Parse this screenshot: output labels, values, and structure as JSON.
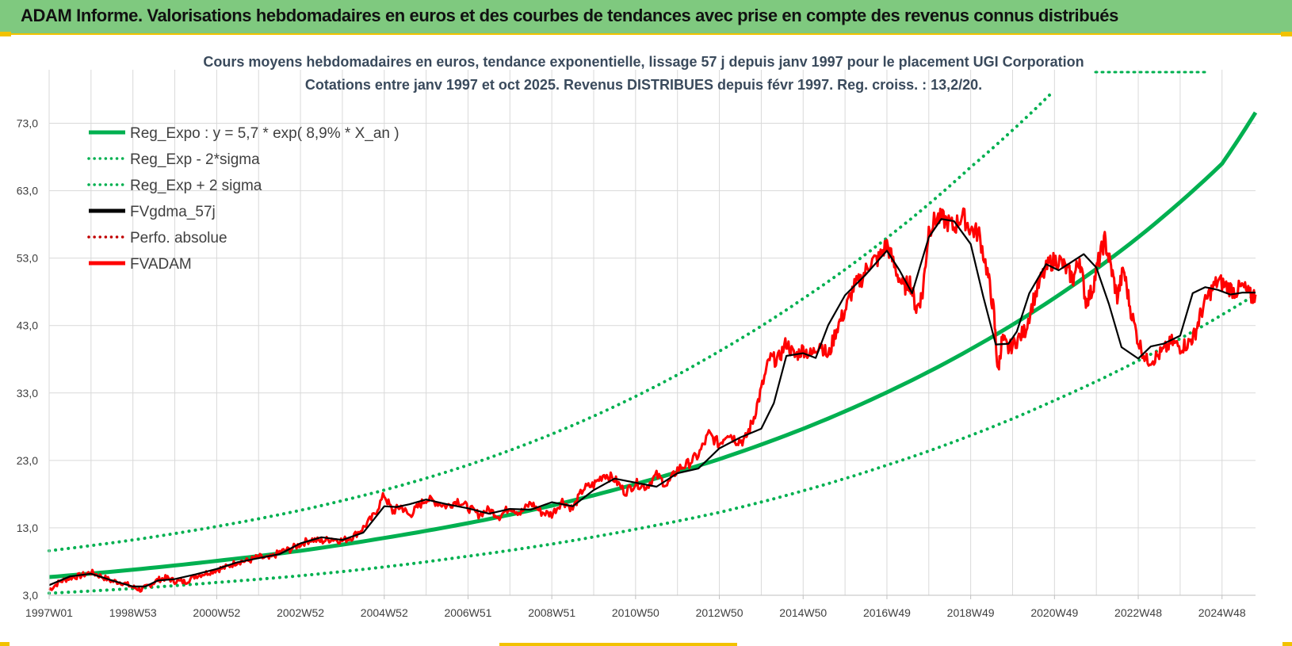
{
  "banner": {
    "title": "ADAM Informe. Valorisations hebdomadaires en euros et des courbes de tendances avec prise en compte des revenus connus distribués"
  },
  "colors": {
    "banner_bg": "#7fc97f",
    "accent_yellow": "#f2c200",
    "reg_green": "#00b050",
    "fvadam_red": "#ff0000",
    "fvgdma_black": "#000000",
    "perfo_red": "#c00000"
  },
  "chart_data": {
    "type": "line",
    "title": "Cours moyens hebdomadaires en euros, tendance exponentielle, lissage 57 j depuis janv 1997 pour le placement UGI Corporation",
    "subtitle": "Cotations entre janv 1997 et oct 2025. Revenus DISTRIBUES depuis févr 1997. Reg. croiss. : 13,2/20.",
    "xlabel": "",
    "ylabel": "",
    "xlim": [
      1997.0,
      2025.8
    ],
    "ylim": [
      3.0,
      80.0
    ],
    "y_ticks": [
      "3,0",
      "13,0",
      "23,0",
      "33,0",
      "43,0",
      "53,0",
      "63,0",
      "73,0"
    ],
    "y_tick_values": [
      3,
      13,
      23,
      33,
      43,
      53,
      63,
      73
    ],
    "x_ticks": [
      "1997W01",
      "1998W53",
      "2000W52",
      "2002W52",
      "2004W52",
      "2006W51",
      "2008W51",
      "2010W50",
      "2012W50",
      "2014W50",
      "2016W49",
      "2018W49",
      "2020W49",
      "2022W48",
      "2024W48"
    ],
    "x_tick_values": [
      1997.0,
      1999.0,
      2001.0,
      2003.0,
      2005.0,
      2007.0,
      2009.0,
      2011.0,
      2013.0,
      2015.0,
      2017.0,
      2019.0,
      2021.0,
      2023.0,
      2025.0
    ],
    "grid": true,
    "legend": "top-left",
    "series": [
      {
        "name": "Reg_Expo : y = 5,7 * exp( 8,9% *  X_an )",
        "style": "solid",
        "x": [
          1997.0,
          1999.0,
          2001.0,
          2003.0,
          2005.0,
          2007.0,
          2009.0,
          2011.0,
          2013.0,
          2015.0,
          2017.0,
          2019.0,
          2021.0,
          2023.0,
          2025.0,
          2025.8
        ],
        "values": [
          5.7,
          6.8,
          8.1,
          9.6,
          11.5,
          13.7,
          16.3,
          19.5,
          23.2,
          27.7,
          33.1,
          39.5,
          47.1,
          56.1,
          67.0,
          74.6
        ]
      },
      {
        "name": "Reg_Exp - 2*sigma",
        "style": "dotted",
        "x": [
          1997.0,
          1999.0,
          2001.0,
          2003.0,
          2005.0,
          2007.0,
          2009.0,
          2011.0,
          2013.0,
          2015.0,
          2017.0,
          2019.0,
          2021.0,
          2023.0,
          2025.0,
          2025.8
        ],
        "values": [
          3.3,
          4.0,
          4.9,
          5.9,
          7.2,
          8.8,
          10.6,
          12.8,
          15.3,
          18.5,
          22.3,
          26.7,
          31.9,
          37.8,
          44.6,
          47.6
        ]
      },
      {
        "name": "Reg_Exp + 2 sigma",
        "style": "dotted",
        "x": [
          1997.0,
          1999.0,
          2001.0,
          2003.0,
          2005.0,
          2007.0,
          2009.0,
          2011.0,
          2013.0,
          2015.0,
          2017.0,
          2019.0,
          2020.9
        ],
        "values": [
          9.6,
          11.2,
          13.2,
          15.6,
          18.6,
          22.3,
          26.9,
          32.5,
          39.2,
          47.0,
          56.0,
          66.5,
          77.3
        ]
      },
      {
        "name": "FVgdma_57j",
        "style": "solid",
        "x": [
          1997.0,
          1997.5,
          1998.0,
          1998.5,
          1999.0,
          1999.3,
          1999.6,
          2000.0,
          2000.5,
          2001.0,
          2001.5,
          2002.0,
          2002.5,
          2003.0,
          2003.5,
          2004.0,
          2004.5,
          2005.0,
          2005.3,
          2005.6,
          2006.0,
          2006.5,
          2007.0,
          2007.5,
          2008.0,
          2008.5,
          2009.0,
          2009.5,
          2010.0,
          2010.5,
          2011.0,
          2011.5,
          2012.0,
          2012.5,
          2013.0,
          2013.5,
          2014.0,
          2014.3,
          2014.6,
          2015.0,
          2015.3,
          2015.6,
          2016.0,
          2016.5,
          2017.0,
          2017.3,
          2017.6,
          2018.0,
          2018.3,
          2018.6,
          2019.0,
          2019.3,
          2019.6,
          2019.9,
          2020.1,
          2020.4,
          2020.8,
          2021.1,
          2021.4,
          2021.7,
          2022.0,
          2022.3,
          2022.6,
          2023.0,
          2023.3,
          2023.6,
          2024.0,
          2024.3,
          2024.6,
          2024.9,
          2025.2,
          2025.5,
          2025.8
        ],
        "values": [
          4.5,
          5.8,
          6.2,
          5.2,
          4.3,
          4.3,
          5.2,
          5.4,
          6.1,
          6.9,
          7.9,
          8.5,
          9.1,
          10.7,
          11.6,
          11.2,
          12.3,
          16.2,
          16.1,
          16.5,
          17.2,
          16.5,
          15.9,
          15.1,
          15.8,
          15.7,
          16.8,
          16.2,
          18.6,
          20.3,
          19.7,
          19.1,
          21.1,
          21.8,
          24.8,
          26.4,
          27.7,
          31.5,
          38.5,
          38.9,
          38.2,
          43.1,
          47.5,
          50.6,
          54.1,
          51.2,
          47.8,
          56.1,
          58.8,
          58.5,
          55.1,
          47.3,
          40.2,
          40.3,
          42.1,
          47.8,
          52.1,
          51.2,
          52.4,
          53.6,
          51.6,
          46.2,
          39.8,
          38.1,
          39.9,
          40.3,
          41.5,
          47.8,
          48.7,
          48.3,
          47.6,
          47.9,
          47.9
        ]
      },
      {
        "name": "Perfo. absolue",
        "style": "dotted",
        "x": [],
        "values": []
      },
      {
        "name": "FVADAM",
        "style": "solid",
        "x": [
          1997.0,
          1997.25,
          1997.5,
          1997.75,
          1998.0,
          1998.25,
          1998.5,
          1998.75,
          1999.0,
          1999.2,
          1999.4,
          1999.6,
          1999.8,
          2000.0,
          2000.25,
          2000.5,
          2000.75,
          2001.0,
          2001.25,
          2001.5,
          2001.75,
          2002.0,
          2002.25,
          2002.5,
          2002.75,
          2003.0,
          2003.25,
          2003.5,
          2003.75,
          2004.0,
          2004.25,
          2004.5,
          2004.75,
          2005.0,
          2005.2,
          2005.4,
          2005.6,
          2005.8,
          2006.0,
          2006.25,
          2006.5,
          2006.75,
          2007.0,
          2007.25,
          2007.5,
          2007.75,
          2008.0,
          2008.25,
          2008.5,
          2008.75,
          2009.0,
          2009.25,
          2009.5,
          2009.75,
          2010.0,
          2010.25,
          2010.5,
          2010.75,
          2011.0,
          2011.25,
          2011.5,
          2011.75,
          2012.0,
          2012.25,
          2012.5,
          2012.75,
          2013.0,
          2013.2,
          2013.4,
          2013.6,
          2013.8,
          2014.0,
          2014.2,
          2014.4,
          2014.6,
          2014.8,
          2015.0,
          2015.2,
          2015.4,
          2015.6,
          2015.8,
          2016.0,
          2016.2,
          2016.4,
          2016.6,
          2016.8,
          2017.0,
          2017.2,
          2017.4,
          2017.55,
          2017.7,
          2017.85,
          2018.0,
          2018.2,
          2018.4,
          2018.6,
          2018.8,
          2019.0,
          2019.2,
          2019.4,
          2019.55,
          2019.65,
          2019.75,
          2019.9,
          2020.1,
          2020.3,
          2020.5,
          2020.7,
          2020.9,
          2021.1,
          2021.3,
          2021.45,
          2021.6,
          2021.75,
          2021.9,
          2022.05,
          2022.2,
          2022.35,
          2022.5,
          2022.65,
          2022.8,
          2023.0,
          2023.2,
          2023.4,
          2023.6,
          2023.8,
          2024.0,
          2024.2,
          2024.35,
          2024.5,
          2024.7,
          2024.9,
          2025.1,
          2025.3,
          2025.5,
          2025.7,
          2025.8
        ],
        "values": [
          3.8,
          5.0,
          5.6,
          5.9,
          6.4,
          5.8,
          5.1,
          4.9,
          4.2,
          3.8,
          4.5,
          5.3,
          5.6,
          5.1,
          5.0,
          5.9,
          6.3,
          6.8,
          7.2,
          8.0,
          8.1,
          8.7,
          8.4,
          9.4,
          9.8,
          10.6,
          11.3,
          11.0,
          11.4,
          11.1,
          11.7,
          13.0,
          14.8,
          17.9,
          15.4,
          16.2,
          14.8,
          16.1,
          17.3,
          16.8,
          16.2,
          17.1,
          16.0,
          15.0,
          15.7,
          14.7,
          16.1,
          15.2,
          16.7,
          15.3,
          15.0,
          17.0,
          15.8,
          18.8,
          19.4,
          21.0,
          20.2,
          18.3,
          19.6,
          19.1,
          20.8,
          19.3,
          21.7,
          22.5,
          23.8,
          26.9,
          25.4,
          27.2,
          26.0,
          25.9,
          28.9,
          33.5,
          38.1,
          37.9,
          40.5,
          38.4,
          39.5,
          38.6,
          40.5,
          38.3,
          42.6,
          45.2,
          48.6,
          50.0,
          52.4,
          52.9,
          55.1,
          51.4,
          48.6,
          49.5,
          45.4,
          47.7,
          57.3,
          59.0,
          58.6,
          57.5,
          59.4,
          57.3,
          56.6,
          50.9,
          45.1,
          36.0,
          41.1,
          39.5,
          40.8,
          42.3,
          46.8,
          50.2,
          52.4,
          52.8,
          51.2,
          49.9,
          53.1,
          46.5,
          48.2,
          52.5,
          55.7,
          51.6,
          47.2,
          51.4,
          45.9,
          40.7,
          37.8,
          38.2,
          39.2,
          40.6,
          39.8,
          40.4,
          41.7,
          44.9,
          47.8,
          49.6,
          48.9,
          48.1,
          48.7,
          47.2,
          47.6
        ]
      }
    ]
  },
  "legend": [
    {
      "label": "Reg_Expo : y = 5,7 * exp( 8,9% *  X_an )",
      "color": "#00b050",
      "style": "solid"
    },
    {
      "label": "Reg_Exp - 2*sigma",
      "color": "#00b050",
      "style": "dotted"
    },
    {
      "label": "Reg_Exp + 2 sigma",
      "color": "#00b050",
      "style": "dotted"
    },
    {
      "label": "FVgdma_57j",
      "color": "#000000",
      "style": "solid"
    },
    {
      "label": "Perfo. absolue",
      "color": "#c00000",
      "style": "dotted"
    },
    {
      "label": "FVADAM",
      "color": "#ff0000",
      "style": "solid"
    }
  ]
}
